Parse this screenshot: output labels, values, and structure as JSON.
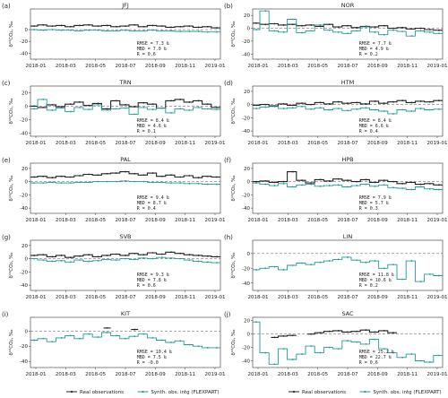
{
  "chart_data": [
    {
      "label": "(a)",
      "title": "JFJ",
      "type": "line",
      "x_ticks": [
        "2018-01",
        "2018-03",
        "2018-05",
        "2018-07",
        "2018-09",
        "2018-11",
        "2019-01"
      ],
      "y_ticks": [
        "0",
        "-20",
        "-40"
      ],
      "ylim": [
        -50,
        35
      ],
      "ylabel": "δ¹³CO₂, ‰",
      "stats": [
        "RMSE =  7.3 ‰",
        "MBD  =  7.0 ‰",
        "R    =  0.6"
      ],
      "series": [
        {
          "name": "Real observations",
          "color": "#222222",
          "values": [
            6,
            8,
            6,
            7,
            5,
            7,
            8,
            6,
            7,
            5,
            6,
            8,
            5,
            7,
            6,
            4,
            5,
            6,
            4,
            5,
            3
          ]
        },
        {
          "name": "Synth. obs. intg (FLEXPART)",
          "color": "#1f9a96",
          "values": [
            0,
            -1,
            0,
            -1,
            -1,
            -2,
            -1,
            -1,
            -2,
            -2,
            -1,
            -2,
            -2,
            -1,
            -2,
            -2,
            -3,
            -3,
            -3,
            -4,
            -4
          ]
        }
      ]
    },
    {
      "label": "(b)",
      "title": "NOR",
      "type": "line",
      "x_ticks": [
        "2018-01",
        "2018-03",
        "2018-05",
        "2018-07",
        "2018-09",
        "2018-11",
        "2019-01"
      ],
      "y_ticks": [
        "20",
        "0",
        "-20",
        "-40"
      ],
      "ylim": [
        -48,
        30
      ],
      "ylabel": "δ¹³CO₂, ‰",
      "stats": [
        "RMSE =  7.7 ‰",
        "MBD  =  4.9 ‰",
        "R    =  0.2"
      ],
      "series": [
        {
          "name": "Real observations",
          "color": "#222222",
          "values": [
            8,
            6,
            7,
            5,
            6,
            4,
            5,
            3,
            6,
            2,
            4,
            1,
            3,
            2,
            4,
            0,
            1,
            -1,
            0,
            -2,
            -3
          ]
        },
        {
          "name": "Synth. obs. intg (FLEXPART)",
          "color": "#1f9a96",
          "values": [
            -2,
            27,
            -4,
            -6,
            14,
            -7,
            -4,
            5,
            -3,
            -6,
            -8,
            -4,
            2,
            -6,
            -10,
            -3,
            -5,
            -12,
            -4,
            -6,
            -8
          ]
        }
      ]
    },
    {
      "label": "(c)",
      "title": "TRN",
      "type": "line",
      "x_ticks": [
        "2018-01",
        "2018-03",
        "2018-05",
        "2018-07",
        "2018-09",
        "2018-11",
        "2019-01"
      ],
      "y_ticks": [
        "20",
        "0",
        "-20",
        "-40"
      ],
      "ylim": [
        -45,
        30
      ],
      "ylabel": "δ¹³CO₂, ‰",
      "stats": [
        "RMSE =  8.4 ‰",
        "MBD  =  4.6 ‰",
        "R    =  0.1"
      ],
      "series": [
        {
          "name": "Real observations",
          "color": "#222222",
          "values": [
            0,
            -2,
            2,
            -1,
            3,
            6,
            1,
            4,
            -4,
            8,
            2,
            -1,
            5,
            3,
            -3,
            8,
            10,
            6,
            8,
            3,
            -2
          ]
        },
        {
          "name": "Synth. obs. intg (FLEXPART)",
          "color": "#1f9a96",
          "values": [
            -4,
            10,
            -6,
            -3,
            -8,
            -2,
            -5,
            2,
            -6,
            -4,
            -3,
            -12,
            -2,
            -5,
            -3,
            -10,
            -4,
            -6,
            -2,
            -4,
            -5
          ]
        }
      ]
    },
    {
      "label": "(d)",
      "title": "HTM",
      "type": "line",
      "x_ticks": [
        "2018-01",
        "2018-03",
        "2018-05",
        "2018-07",
        "2018-09",
        "2018-11",
        "2019-01"
      ],
      "y_ticks": [
        "20",
        "0",
        "-20",
        "-40"
      ],
      "ylim": [
        -48,
        28
      ],
      "ylabel": "δ¹³CO₂, ‰",
      "stats": [
        "RMSE =  8.4 ‰",
        "MBD  =  6.6 ‰",
        "R    =  0.4"
      ],
      "series": [
        {
          "name": "Real observations",
          "color": "#222222",
          "values": [
            -1,
            0,
            -2,
            1,
            -1,
            2,
            0,
            3,
            1,
            4,
            2,
            3,
            1,
            5,
            2,
            4,
            6,
            3,
            5,
            4,
            6
          ]
        },
        {
          "name": "Synth. obs. intg (FLEXPART)",
          "color": "#1f9a96",
          "values": [
            -6,
            -4,
            -3,
            -6,
            -5,
            -3,
            -7,
            -5,
            -8,
            -6,
            -9,
            -7,
            -5,
            -8,
            -10,
            -14,
            -8,
            -10,
            -6,
            -8,
            -7
          ]
        }
      ]
    },
    {
      "label": "(e)",
      "title": "PAL",
      "type": "line",
      "x_ticks": [
        "2018-01",
        "2018-03",
        "2018-05",
        "2018-07",
        "2018-09",
        "2018-11",
        "2019-01"
      ],
      "y_ticks": [
        "20",
        "0",
        "-20",
        "-40"
      ],
      "ylim": [
        -48,
        28
      ],
      "ylabel": "δ¹³CO₂, ‰",
      "stats": [
        "RMSE =  9.4 ‰",
        "MBD  =  8.7 ‰",
        "R    =  0.4"
      ],
      "series": [
        {
          "name": "Real observations",
          "color": "#222222",
          "values": [
            7,
            8,
            6,
            8,
            7,
            9,
            11,
            10,
            12,
            13,
            15,
            12,
            10,
            13,
            8,
            10,
            7,
            9,
            6,
            8,
            7
          ]
        },
        {
          "name": "Synth. obs. intg (FLEXPART)",
          "color": "#1f9a96",
          "values": [
            -2,
            -2,
            -1,
            -2,
            -2,
            -1,
            -1,
            0,
            0,
            0,
            1,
            0,
            0,
            -1,
            -1,
            -2,
            -2,
            -3,
            -3,
            -4,
            -4
          ]
        }
      ]
    },
    {
      "label": "(f)",
      "title": "HPB",
      "type": "line",
      "x_ticks": [
        "2018-01",
        "2018-03",
        "2018-05",
        "2018-07",
        "2018-09",
        "2018-11",
        "2019-01"
      ],
      "y_ticks": [
        "20",
        "0",
        "-20",
        "-40"
      ],
      "ylim": [
        -48,
        28
      ],
      "ylabel": "δ¹³CO₂, ‰",
      "stats": [
        "RMSE =  7.9 ‰",
        "MBD  =  5.7 ‰",
        "R    =  0.3"
      ],
      "series": [
        {
          "name": "Real observations",
          "color": "#222222",
          "values": [
            0,
            1,
            -1,
            0,
            15,
            2,
            -2,
            3,
            1,
            4,
            2,
            0,
            3,
            -1,
            2,
            0,
            -3,
            -1,
            -4,
            -3,
            -5
          ]
        },
        {
          "name": "Synth. obs. intg (FLEXPART)",
          "color": "#1f9a96",
          "values": [
            -2,
            -4,
            -6,
            -3,
            -8,
            -5,
            -4,
            -7,
            -6,
            -5,
            -8,
            -6,
            -4,
            -7,
            -5,
            -9,
            -10,
            -12,
            -8,
            -11,
            -12
          ]
        }
      ]
    },
    {
      "label": "(g)",
      "title": "SVB",
      "type": "line",
      "x_ticks": [
        "2018-01",
        "2018-03",
        "2018-05",
        "2018-07",
        "2018-09",
        "2018-11",
        "2019-01"
      ],
      "y_ticks": [
        "20",
        "0",
        "-20",
        "-40"
      ],
      "ylim": [
        -48,
        28
      ],
      "ylabel": "δ¹³CO₂, ‰",
      "stats": [
        "RMSE =  9.3 ‰",
        "MBD  =  7.8 ‰",
        "R    =  0.6"
      ],
      "series": [
        {
          "name": "Real observations",
          "color": "#222222",
          "values": [
            5,
            6,
            3,
            5,
            2,
            4,
            6,
            3,
            5,
            7,
            5,
            8,
            6,
            9,
            7,
            10,
            8,
            6,
            5,
            4,
            3
          ]
        },
        {
          "name": "Synth. obs. intg (FLEXPART)",
          "color": "#1f9a96",
          "values": [
            0,
            -2,
            -4,
            -3,
            -5,
            -2,
            -4,
            -3,
            -1,
            -2,
            0,
            -1,
            1,
            0,
            2,
            1,
            0,
            -2,
            -4,
            -5,
            -6
          ]
        }
      ]
    },
    {
      "label": "(h)",
      "title": "LIN",
      "type": "line",
      "x_ticks": [
        "2018-01",
        "2018-03",
        "2018-05",
        "2018-07",
        "2018-09",
        "2018-11",
        "2019-01"
      ],
      "y_ticks": [
        "0",
        "-20",
        "-40"
      ],
      "ylim": [
        -50,
        18
      ],
      "ylabel": "δ¹³CO₂, ‰",
      "stats": [
        "RMSE = 11.8 ‰",
        "MBD  = 10.6 ‰",
        "R    =  0.2"
      ],
      "series": [
        {
          "name": "Real observations",
          "color": "#222222",
          "values": [
            null,
            null,
            null,
            null,
            null,
            null,
            null,
            null,
            null,
            null,
            null,
            null,
            null,
            null,
            null,
            null,
            null,
            null,
            null,
            null,
            null
          ]
        },
        {
          "name": "Synth. obs. intg (FLEXPART)",
          "color": "#1f9a96",
          "values": [
            -22,
            -20,
            -18,
            -22,
            -16,
            -13,
            -15,
            -12,
            -10,
            -8,
            -5,
            -9,
            -12,
            -10,
            -20,
            -15,
            -35,
            -10,
            -38,
            -28,
            -30
          ]
        }
      ]
    },
    {
      "label": "(i)",
      "title": "KIT",
      "type": "line",
      "x_ticks": [
        "2018-01",
        "2018-03",
        "2018-05",
        "2018-07",
        "2018-09",
        "2018-11",
        "2019-01"
      ],
      "y_ticks": [
        "0",
        "-20",
        "-40"
      ],
      "ylim": [
        -48,
        18
      ],
      "ylabel": "δ¹³CO₂, ‰",
      "stats": [
        "RMSE = 10.4 ‰",
        "MBD  =  7.5 ‰",
        "R    = -0.0"
      ],
      "series": [
        {
          "name": "Real observations",
          "color": "#222222",
          "values": [
            null,
            null,
            null,
            null,
            null,
            null,
            null,
            null,
            4,
            null,
            null,
            2,
            null,
            null,
            null,
            null,
            null,
            null,
            null,
            null,
            null
          ]
        },
        {
          "name": "Synth. obs. intg (FLEXPART)",
          "color": "#1f9a96",
          "values": [
            -12,
            -10,
            -14,
            -9,
            -6,
            -10,
            -4,
            -8,
            -2,
            -6,
            -10,
            -7,
            -4,
            -9,
            -12,
            -15,
            -13,
            -18,
            -20,
            -22,
            -22
          ]
        }
      ]
    },
    {
      "label": "(j)",
      "title": "SAC",
      "type": "line",
      "x_ticks": [
        "2018-01",
        "2018-03",
        "2018-05",
        "2018-07",
        "2018-09",
        "2018-11",
        "2019-01"
      ],
      "y_ticks": [
        "20",
        "0",
        "-20",
        "-40"
      ],
      "ylim": [
        -50,
        25
      ],
      "ylabel": "δ¹³CO₂, ‰",
      "stats": [
        "RMSE = 25.2 ‰",
        "MBD  = 22.7 ‰",
        "R    =  0.6"
      ],
      "series": [
        {
          "name": "Real observations",
          "color": "#222222",
          "values": [
            null,
            null,
            -5,
            -3,
            -2,
            null,
            0,
            2,
            4,
            5,
            3,
            4,
            6,
            3,
            5,
            2,
            null,
            null,
            null,
            null,
            null
          ]
        },
        {
          "name": "Synth. obs. intg (FLEXPART)",
          "color": "#1f9a96",
          "values": [
            18,
            -28,
            -45,
            -22,
            -38,
            -30,
            -18,
            -28,
            -20,
            -22,
            -10,
            -12,
            -15,
            -8,
            -22,
            -28,
            -35,
            -30,
            -40,
            -42,
            -32
          ]
        }
      ]
    }
  ],
  "legend": {
    "left": [
      {
        "label": "Real observations",
        "color": "#222222"
      },
      {
        "label": "Synth. obs. intg (FLEXPART)",
        "color": "#1f9a96"
      }
    ],
    "right": [
      {
        "label": "Real observations",
        "color": "#222222"
      },
      {
        "label": "Synth. obs. intg (FLEXPART)",
        "color": "#1f9a96"
      }
    ]
  }
}
